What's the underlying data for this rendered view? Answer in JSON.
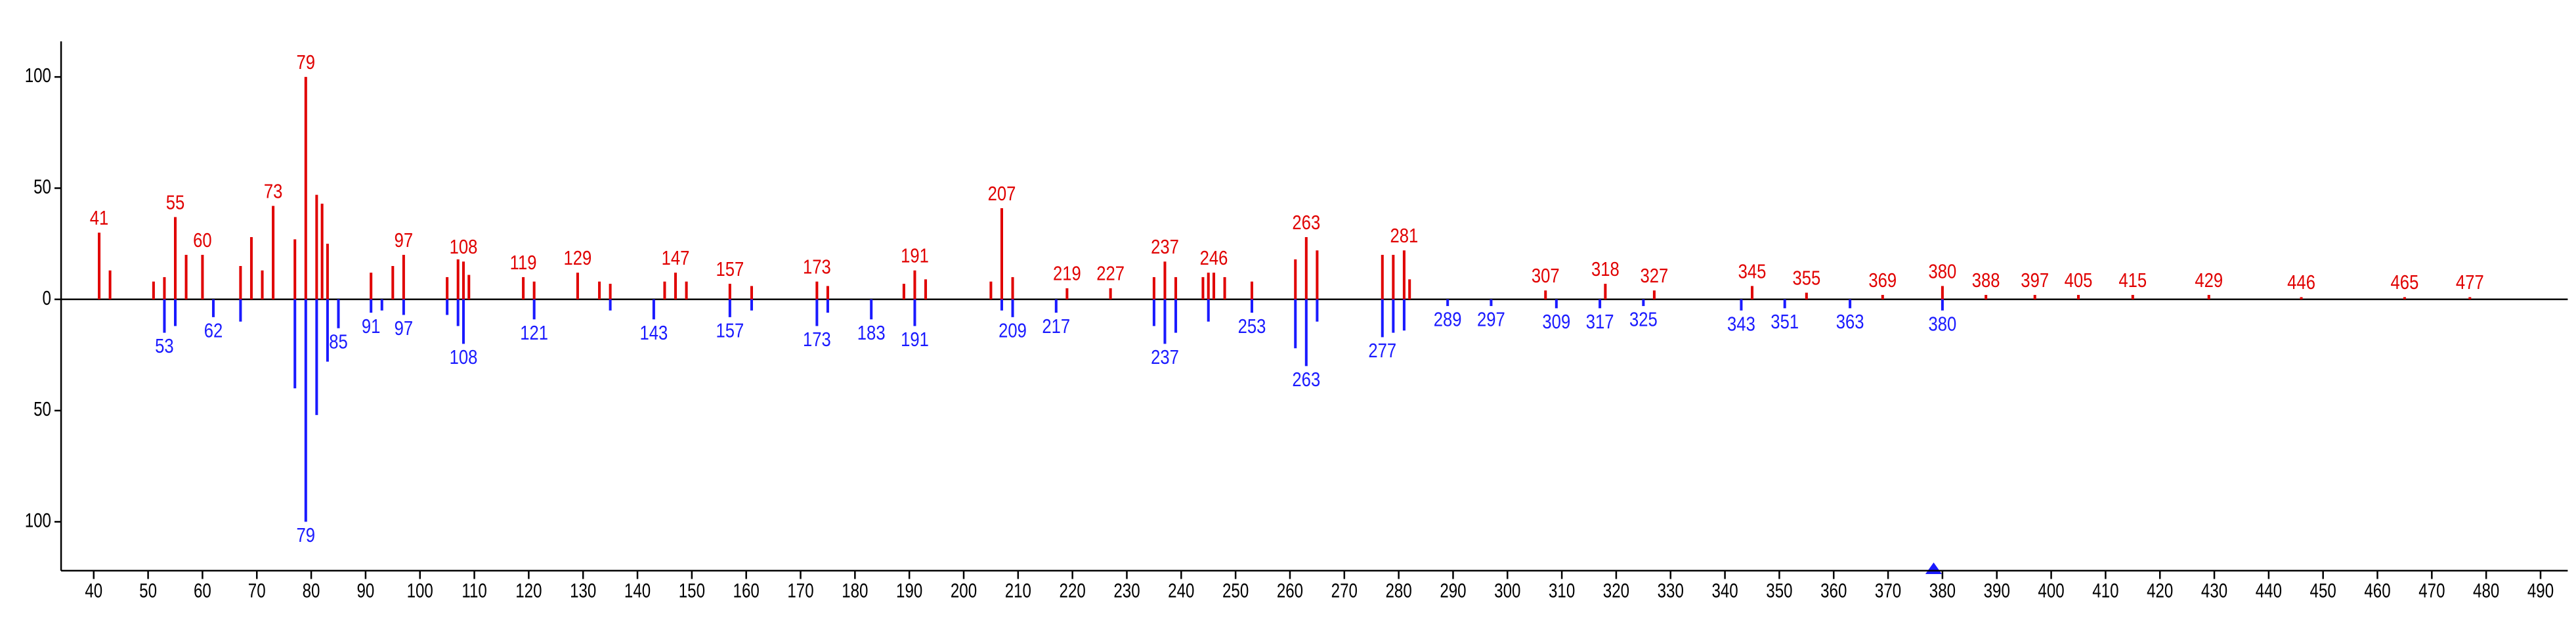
{
  "chart_data": {
    "type": "mirror-stick",
    "xlim": [
      34,
      495
    ],
    "ylim": [
      -122,
      116
    ],
    "xticks": [
      40,
      50,
      60,
      70,
      80,
      90,
      100,
      110,
      120,
      130,
      140,
      150,
      160,
      170,
      180,
      190,
      200,
      210,
      220,
      230,
      240,
      250,
      260,
      270,
      280,
      290,
      300,
      310,
      320,
      330,
      340,
      350,
      360,
      370,
      380,
      390,
      400,
      410,
      420,
      430,
      440,
      450,
      460,
      470,
      480,
      490
    ],
    "yticks": [
      {
        "value": -100,
        "label": "100"
      },
      {
        "value": -50,
        "label": "50"
      },
      0,
      50,
      100
    ],
    "series": [
      {
        "color": "#e00000",
        "labels": true,
        "x": [
          41,
          55,
          60,
          73,
          79,
          97,
          108,
          119,
          129,
          147,
          157,
          173,
          191,
          207,
          219,
          227,
          237,
          246,
          263,
          281,
          307,
          318,
          327,
          345,
          355,
          369,
          380,
          388,
          397,
          405,
          415,
          429,
          446,
          465,
          477
        ],
        "values": [
          30,
          37,
          20,
          42,
          100,
          20,
          17,
          10,
          12,
          12,
          7,
          8,
          13,
          41,
          5,
          5,
          17,
          12,
          28,
          22,
          4,
          7,
          4,
          6,
          3,
          2,
          6,
          2,
          2,
          2,
          2,
          2,
          1,
          1,
          1
        ]
      },
      {
        "color": "#e00000",
        "labels": false,
        "x": [
          43,
          51,
          53,
          57,
          67,
          69,
          71,
          77,
          81,
          82,
          83,
          91,
          95,
          105,
          107,
          109,
          121,
          133,
          135,
          145,
          149,
          161,
          175,
          189,
          193,
          205,
          209,
          235,
          239,
          244,
          245,
          248,
          253,
          261,
          265,
          277,
          279,
          282
        ],
        "values": [
          13,
          8,
          10,
          20,
          15,
          28,
          13,
          27,
          47,
          43,
          25,
          12,
          15,
          10,
          18,
          11,
          8,
          8,
          7,
          8,
          8,
          6,
          6,
          7,
          9,
          8,
          10,
          10,
          10,
          10,
          12,
          10,
          8,
          18,
          22,
          20,
          20,
          9
        ]
      },
      {
        "color": "#1a1aff",
        "labels": true,
        "x": [
          53,
          62,
          79,
          85,
          91,
          97,
          108,
          121,
          143,
          157,
          173,
          183,
          191,
          209,
          217,
          237,
          253,
          263,
          277,
          289,
          297,
          309,
          317,
          325,
          343,
          351,
          363,
          380
        ],
        "values": [
          -15,
          -8,
          -100,
          -13,
          -6,
          -7,
          -20,
          -9,
          -9,
          -8,
          -12,
          -9,
          -12,
          -8,
          -6,
          -20,
          -6,
          -30,
          -17,
          -3,
          -3,
          -4,
          -4,
          -3,
          -5,
          -4,
          -4,
          -5
        ]
      },
      {
        "color": "#1a1aff",
        "labels": false,
        "x": [
          55,
          67,
          77,
          81,
          83,
          93,
          105,
          107,
          135,
          161,
          175,
          207,
          235,
          239,
          245,
          261,
          265,
          279,
          281
        ],
        "values": [
          -12,
          -10,
          -40,
          -52,
          -28,
          -5,
          -7,
          -12,
          -5,
          -5,
          -6,
          -5,
          -12,
          -15,
          -10,
          -22,
          -10,
          -15,
          -14
        ]
      }
    ]
  }
}
